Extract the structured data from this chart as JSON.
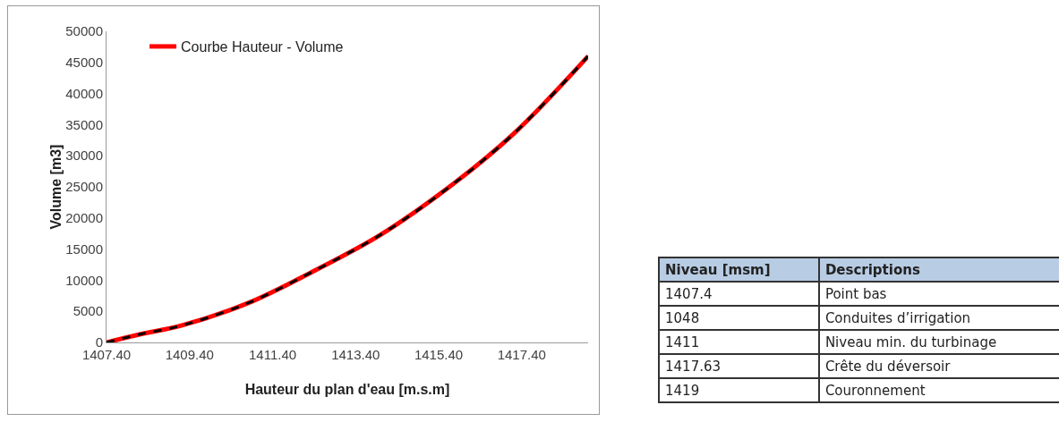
{
  "chart_data": [
    {
      "type": "line",
      "xlabel": "Hauteur du plan d'eau [m.s.m]",
      "ylabel": "Volume [m3]",
      "x": [
        1407.4,
        1408.2,
        1409.2,
        1410.8,
        1412.4,
        1414.0,
        1415.6,
        1417.2,
        1419.0
      ],
      "series": [
        {
          "name": "Courbe Hauteur - Volume",
          "color": "#ff0000",
          "line_style": "solid",
          "values": [
            0,
            1300,
            2700,
            6300,
            11500,
            17300,
            24700,
            33500,
            46000
          ]
        },
        {
          "color": "#000000",
          "line_style": "dashed",
          "values": [
            0,
            1300,
            2700,
            6300,
            11500,
            17300,
            24700,
            33500,
            46000
          ]
        }
      ],
      "xlim": [
        1407.4,
        1419
      ],
      "xticks": [
        {
          "value": 1407.4,
          "label": "1407.40"
        },
        {
          "value": 1409.4,
          "label": "1409.40"
        },
        {
          "value": 1411.4,
          "label": "1411.40"
        },
        {
          "value": 1413.4,
          "label": "1413.40"
        },
        {
          "value": 1415.4,
          "label": "1415.40"
        },
        {
          "value": 1417.4,
          "label": "1417.40"
        }
      ],
      "ylim": [
        0,
        50000
      ],
      "yticks": [
        0,
        5000,
        10000,
        15000,
        20000,
        25000,
        30000,
        35000,
        40000,
        45000,
        50000
      ],
      "legend": "top left",
      "marker": "none"
    },
    {
      "type": "other",
      "annotations": [
        "Niveau [msm]",
        "Descriptions",
        "1407.4",
        "Point bas",
        "1048",
        "Conduites d’irrigation",
        "1411",
        "Niveau min. du turbinage",
        "1417.63",
        "Crête du déversoir",
        "1419",
        "Couronnement"
      ]
    }
  ]
}
